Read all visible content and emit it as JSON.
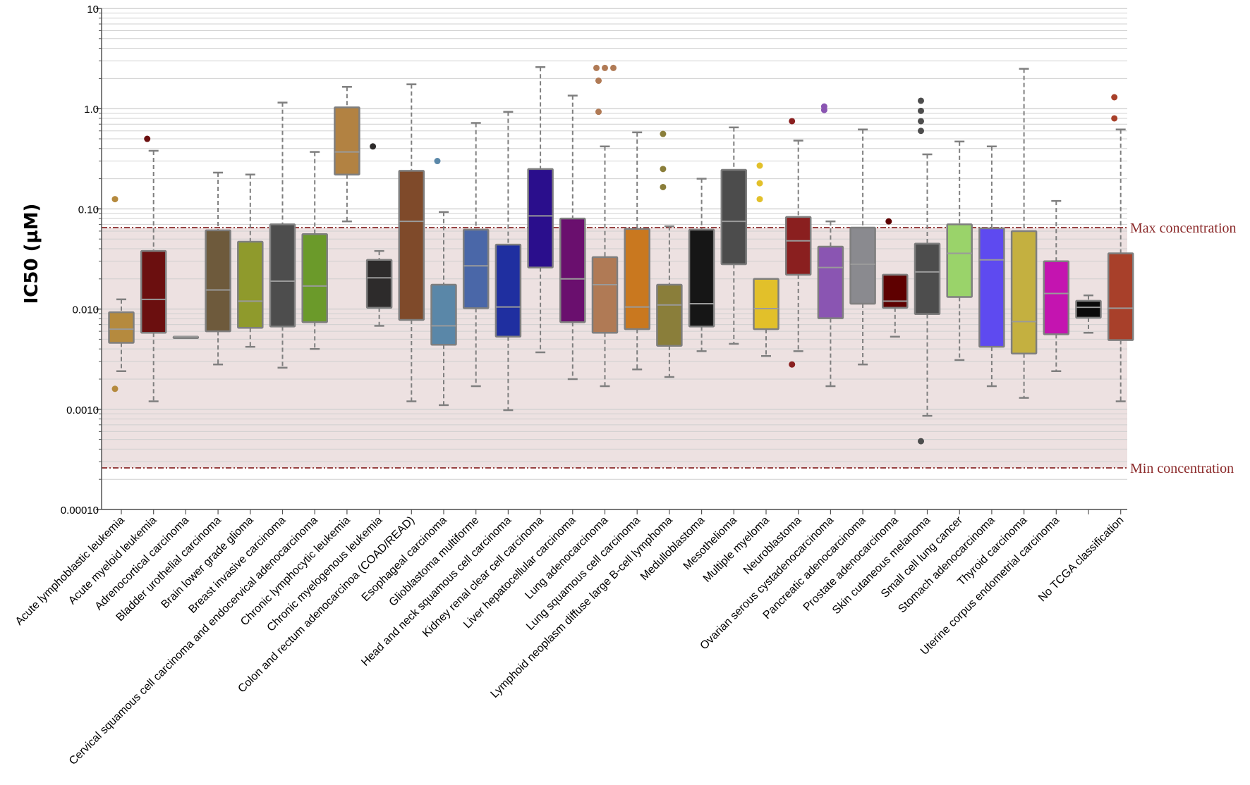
{
  "chart_data": {
    "type": "box",
    "ylabel": "IC50 (µM)",
    "yscale": "log",
    "ylim": [
      0.0001,
      10
    ],
    "yticks": [
      {
        "value": 10,
        "label": "10"
      },
      {
        "value": 1,
        "label": "1.0"
      },
      {
        "value": 0.1,
        "label": "0.10"
      },
      {
        "value": 0.01,
        "label": "0.010"
      },
      {
        "value": 0.001,
        "label": "0.0010"
      },
      {
        "value": 0.0001,
        "label": "0.00010"
      }
    ],
    "grid": true,
    "colors": {
      "shade": "#ede1e1",
      "reference_line": "#8b2a2a",
      "box_border": "#7f7f7f",
      "whisker": "#7f7f7f",
      "grid": "#d0d0d0"
    },
    "reference_lines": [
      {
        "label": "Max concentration",
        "value": 0.065
      },
      {
        "label": "Min concentration",
        "value": 0.00026
      }
    ],
    "categories": [
      {
        "label": "Acute lymphoblastic leukemia",
        "color": "#b58a3e",
        "wlow": 0.0024,
        "q1": 0.0046,
        "med": 0.0063,
        "q3": 0.0093,
        "whigh": 0.0125,
        "outliers": [
          0.125,
          0.0016
        ]
      },
      {
        "label": "Acute myeloid leukemia",
        "color": "#6b0f0f",
        "wlow": 0.0012,
        "q1": 0.0058,
        "med": 0.0125,
        "q3": 0.038,
        "whigh": 0.38,
        "outliers": [
          0.5
        ]
      },
      {
        "label": "Adrenocortical carcinoma",
        "color": "#888888",
        "wlow": 0.0053,
        "q1": 0.0053,
        "med": 0.0053,
        "q3": 0.0053,
        "whigh": 0.0053,
        "outliers": []
      },
      {
        "label": "Bladder urothelial carcinoma",
        "color": "#6e5a3c",
        "wlow": 0.0028,
        "q1": 0.006,
        "med": 0.0155,
        "q3": 0.061,
        "whigh": 0.23,
        "outliers": []
      },
      {
        "label": "Brain lower grade glioma",
        "color": "#8f9a2c",
        "wlow": 0.0042,
        "q1": 0.0065,
        "med": 0.012,
        "q3": 0.047,
        "whigh": 0.22,
        "outliers": []
      },
      {
        "label": "Breast invasive carcinoma",
        "color": "#4d4d4d",
        "wlow": 0.0026,
        "q1": 0.0067,
        "med": 0.019,
        "q3": 0.07,
        "whigh": 1.15,
        "outliers": []
      },
      {
        "label": "Cervical squamous cell carcinoma and endocervical adenocarcinoma",
        "color": "#6b9a2a",
        "wlow": 0.004,
        "q1": 0.0074,
        "med": 0.017,
        "q3": 0.056,
        "whigh": 0.37,
        "outliers": []
      },
      {
        "label": "Chronic lymphocytic leukemia",
        "color": "#b28242",
        "wlow": 0.075,
        "q1": 0.22,
        "med": 0.37,
        "q3": 1.03,
        "whigh": 1.65,
        "outliers": []
      },
      {
        "label": "Chronic myelogenous leukemia",
        "color": "#2d2b2b",
        "wlow": 0.0068,
        "q1": 0.0103,
        "med": 0.0205,
        "q3": 0.031,
        "whigh": 0.038,
        "outliers": [
          0.42
        ]
      },
      {
        "label": "Colon and rectum adenocarcinoa (COAD/READ)",
        "color": "#7f4a2a",
        "wlow": 0.0012,
        "q1": 0.0078,
        "med": 0.075,
        "q3": 0.24,
        "whigh": 1.75,
        "outliers": []
      },
      {
        "label": "Esophageal carcinoma",
        "color": "#5a87a8",
        "wlow": 0.0011,
        "q1": 0.0044,
        "med": 0.0068,
        "q3": 0.0175,
        "whigh": 0.093,
        "outliers": [
          0.3
        ]
      },
      {
        "label": "Glioblastoma multiforme",
        "color": "#4a67a8",
        "wlow": 0.0017,
        "q1": 0.0102,
        "med": 0.027,
        "q3": 0.062,
        "whigh": 0.72,
        "outliers": []
      },
      {
        "label": "Head and neck squamous cell carcinoma",
        "color": "#1f2fa0",
        "wlow": 0.00098,
        "q1": 0.0053,
        "med": 0.0105,
        "q3": 0.044,
        "whigh": 0.93,
        "outliers": []
      },
      {
        "label": "Kidney renal clear cell carcinoma",
        "color": "#2a0e8c",
        "wlow": 0.0037,
        "q1": 0.026,
        "med": 0.085,
        "q3": 0.25,
        "whigh": 2.6,
        "outliers": []
      },
      {
        "label": "Liver hepatocellular carcinoma",
        "color": "#6a0f6e",
        "wlow": 0.002,
        "q1": 0.0074,
        "med": 0.02,
        "q3": 0.08,
        "whigh": 1.35,
        "outliers": []
      },
      {
        "label": "Lung adenocarcinoma",
        "color": "#b07a55",
        "wlow": 0.0017,
        "q1": 0.0058,
        "med": 0.0175,
        "q3": 0.033,
        "whigh": 0.42,
        "outliers": [
          2.55,
          2.55,
          2.55,
          1.9,
          0.93
        ]
      },
      {
        "label": "Lung squamous cell carcinoma",
        "color": "#c9781f",
        "wlow": 0.0025,
        "q1": 0.0063,
        "med": 0.0105,
        "q3": 0.063,
        "whigh": 0.58,
        "outliers": []
      },
      {
        "label": "Lymphoid neoplasm diffuse large B-cell lymphoma",
        "color": "#8a7e3a",
        "wlow": 0.0021,
        "q1": 0.0043,
        "med": 0.011,
        "q3": 0.0175,
        "whigh": 0.067,
        "outliers": [
          0.56,
          0.25,
          0.165
        ]
      },
      {
        "label": "Medulloblastoma",
        "color": "#161616",
        "wlow": 0.0038,
        "q1": 0.0067,
        "med": 0.0113,
        "q3": 0.062,
        "whigh": 0.2,
        "outliers": []
      },
      {
        "label": "Mesothelioma",
        "color": "#4c4c4c",
        "wlow": 0.0045,
        "q1": 0.028,
        "med": 0.075,
        "q3": 0.245,
        "whigh": 0.65,
        "outliers": []
      },
      {
        "label": "Multiple myeloma",
        "color": "#e2c02a",
        "wlow": 0.0034,
        "q1": 0.0063,
        "med": 0.0101,
        "q3": 0.02,
        "whigh": 0.02,
        "outliers": [
          0.27,
          0.18,
          0.125
        ]
      },
      {
        "label": "Neuroblastoma",
        "color": "#8a1f1f",
        "wlow": 0.0038,
        "q1": 0.022,
        "med": 0.048,
        "q3": 0.083,
        "whigh": 0.48,
        "outliers": [
          0.75,
          0.0028
        ]
      },
      {
        "label": "Ovarian serous cystadenocarcinoma",
        "color": "#8a55b2",
        "wlow": 0.0017,
        "q1": 0.0081,
        "med": 0.026,
        "q3": 0.042,
        "whigh": 0.075,
        "outliers": [
          0.97,
          1.05
        ]
      },
      {
        "label": "Pancreatic adenocarcinoma",
        "color": "#8a8a8f",
        "wlow": 0.0028,
        "q1": 0.0113,
        "med": 0.028,
        "q3": 0.065,
        "whigh": 0.62,
        "outliers": []
      },
      {
        "label": "Prostate adenocarcinoma",
        "color": "#5e0000",
        "wlow": 0.0053,
        "q1": 0.0103,
        "med": 0.012,
        "q3": 0.022,
        "whigh": 0.022,
        "outliers": [
          0.075
        ]
      },
      {
        "label": "Skin cutaneous melanoma",
        "color": "#4d4d4d",
        "wlow": 0.00086,
        "q1": 0.0089,
        "med": 0.0235,
        "q3": 0.045,
        "whigh": 0.35,
        "outliers": [
          1.2,
          0.95,
          0.75,
          0.6,
          0.00048
        ]
      },
      {
        "label": "Small cell lung cancer",
        "color": "#9ad36a",
        "wlow": 0.0031,
        "q1": 0.0132,
        "med": 0.036,
        "q3": 0.07,
        "whigh": 0.47,
        "outliers": []
      },
      {
        "label": "Stomach adenocarcinoma",
        "color": "#5e4af0",
        "wlow": 0.0017,
        "q1": 0.0042,
        "med": 0.031,
        "q3": 0.064,
        "whigh": 0.42,
        "outliers": []
      },
      {
        "label": "Thyroid carcinoma",
        "color": "#c4b040",
        "wlow": 0.0013,
        "q1": 0.0036,
        "med": 0.0075,
        "q3": 0.06,
        "whigh": 2.5,
        "outliers": []
      },
      {
        "label": "Uterine corpus endometrial carcinoma",
        "color": "#c414b0",
        "wlow": 0.0024,
        "q1": 0.0056,
        "med": 0.0143,
        "q3": 0.03,
        "whigh": 0.12,
        "outliers": []
      },
      {
        "label": "",
        "color": "#0a0a0a",
        "wlow": 0.0058,
        "q1": 0.0082,
        "med": 0.0104,
        "q3": 0.0121,
        "whigh": 0.0137,
        "outliers": []
      },
      {
        "label": "No TCGA classification",
        "color": "#a8402a",
        "wlow": 0.0012,
        "q1": 0.0049,
        "med": 0.0102,
        "q3": 0.036,
        "whigh": 0.62,
        "outliers": [
          1.3,
          0.8
        ]
      }
    ]
  }
}
